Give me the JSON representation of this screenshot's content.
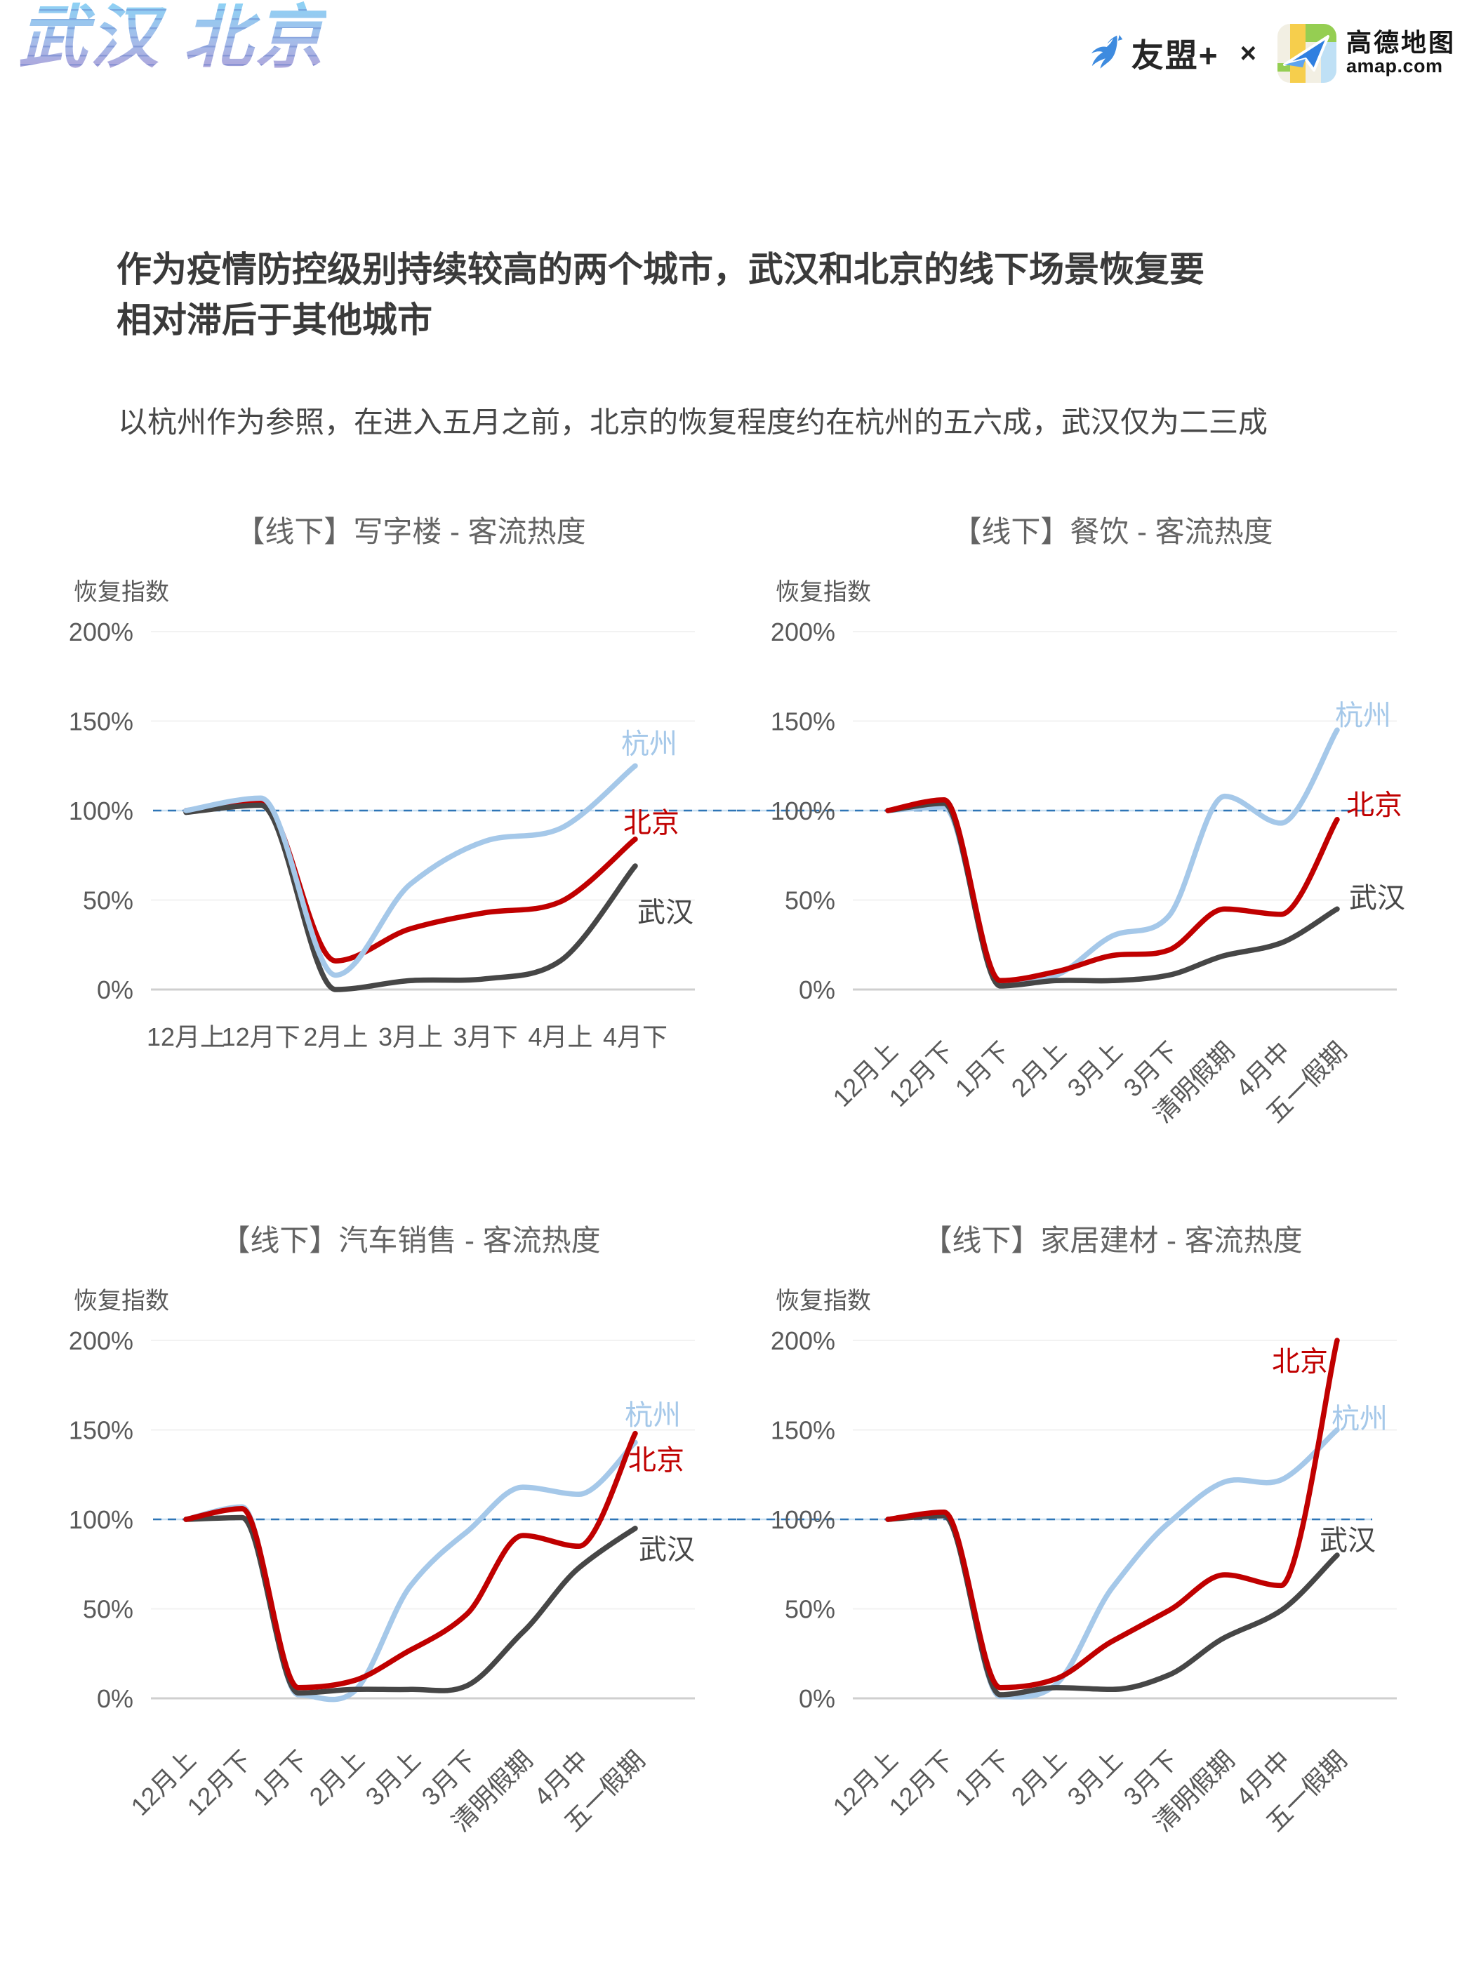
{
  "brand": {
    "title": "武汉 北京"
  },
  "header_logos": {
    "umeng_label": "友盟+",
    "separator": "×",
    "amap_title": "高德地图",
    "amap_subtitle": "amap.com"
  },
  "headline": "作为疫情防控级别持续较高的两个城市，武汉和北京的线下场景恢复要\n相对滞后于其他城市",
  "subheadline": "以杭州作为参照，在进入五月之前，北京的恢复程度约在杭州的五六成，武汉仅为二三成",
  "colors": {
    "hangzhou": "#A5C8E9",
    "beijing": "#C00000",
    "wuhan": "#464646",
    "reference_dash": "#2E75B6",
    "reference_under": "#C9E0F2",
    "axis_text": "#595959",
    "title_text": "#646464",
    "grid_faint": "#F2F2F2",
    "axis_line": "#CFCFCF"
  },
  "axis": {
    "y_label": "恢复指数",
    "y_ticks_pct": [
      200,
      150,
      100,
      50,
      0
    ],
    "reference_pct": 100
  },
  "chart_data": [
    {
      "type": "line",
      "title": "【线下】写字楼 - 客流热度",
      "position": "top-left",
      "ylabel": "恢复指数",
      "ylim": [
        0,
        200
      ],
      "x_labels_rotated": false,
      "categories": [
        "12月上",
        "12月下",
        "2月上",
        "3月上",
        "3月下",
        "4月上",
        "4月下"
      ],
      "series": [
        {
          "name": "北京",
          "color_key": "beijing",
          "values": [
            100,
            105,
            16,
            34,
            43,
            49,
            84
          ],
          "label_x": 838,
          "label_pct": 93
        },
        {
          "name": "武汉",
          "color_key": "wuhan",
          "values": [
            99,
            103,
            0,
            5,
            6,
            16,
            69
          ],
          "label_x": 858,
          "label_pct": 43
        },
        {
          "name": "杭州",
          "color_key": "hangzhou",
          "values": [
            100,
            107,
            8,
            59,
            83,
            90,
            125
          ],
          "label_x": 835,
          "label_pct": 137
        }
      ]
    },
    {
      "type": "line",
      "title": "【线下】餐饮 - 客流热度",
      "position": "top-right",
      "ylabel": "恢复指数",
      "ylim": [
        0,
        200
      ],
      "x_labels_rotated": true,
      "categories": [
        "12月上",
        "12月下",
        "1月下",
        "2月上",
        "3月上",
        "3月下",
        "清明假期",
        "4月中",
        "五一假期"
      ],
      "series": [
        {
          "name": "杭州",
          "color_key": "hangzhou",
          "values": [
            100,
            102,
            4,
            8,
            30,
            41,
            108,
            93,
            145
          ],
          "label_x": 852,
          "label_pct": 153
        },
        {
          "name": "武汉",
          "color_key": "wuhan",
          "values": [
            100,
            104,
            2,
            5,
            5,
            8,
            19,
            26,
            45
          ],
          "label_x": 872,
          "label_pct": 51
        },
        {
          "name": "北京",
          "color_key": "beijing",
          "values": [
            100,
            106,
            5,
            10,
            19,
            22,
            45,
            42,
            95
          ],
          "label_x": 868,
          "label_pct": 103
        }
      ]
    },
    {
      "type": "line",
      "title": "【线下】汽车销售 - 客流热度",
      "position": "bottom-left",
      "ylabel": "恢复指数",
      "ylim": [
        0,
        200
      ],
      "x_labels_rotated": true,
      "categories": [
        "12月上",
        "12月下",
        "1月下",
        "2月上",
        "3月上",
        "3月下",
        "清明假期",
        "4月中",
        "五一假期"
      ],
      "series": [
        {
          "name": "杭州",
          "color_key": "hangzhou",
          "values": [
            100,
            107,
            2,
            4,
            63,
            93,
            118,
            114,
            143
          ],
          "label_x": 840,
          "label_pct": 158
        },
        {
          "name": "武汉",
          "color_key": "wuhan",
          "values": [
            100,
            101,
            3,
            5,
            5,
            7,
            37,
            73,
            95
          ],
          "label_x": 860,
          "label_pct": 83
        },
        {
          "name": "北京",
          "color_key": "beijing",
          "values": [
            100,
            106,
            6,
            10,
            27,
            47,
            91,
            85,
            148
          ],
          "label_x": 845,
          "label_pct": 133
        }
      ]
    },
    {
      "type": "line",
      "title": "【线下】家居建材 - 客流热度",
      "position": "bottom-right",
      "ylabel": "恢复指数",
      "ylim": [
        0,
        200
      ],
      "x_labels_rotated": true,
      "categories": [
        "12月上",
        "12月下",
        "1月下",
        "2月上",
        "3月上",
        "3月下",
        "清明假期",
        "4月中",
        "五一假期"
      ],
      "series": [
        {
          "name": "杭州",
          "color_key": "hangzhou",
          "values": [
            100,
            103,
            1,
            8,
            62,
            98,
            121,
            122,
            150
          ],
          "label_x": 847,
          "label_pct": 156
        },
        {
          "name": "武汉",
          "color_key": "wuhan",
          "values": [
            100,
            102,
            2,
            6,
            5,
            13,
            34,
            49,
            80
          ],
          "label_x": 830,
          "label_pct": 88
        },
        {
          "name": "北京",
          "color_key": "beijing",
          "values": [
            100,
            104,
            6,
            11,
            32,
            49,
            69,
            63,
            200
          ],
          "label_x": 762,
          "label_pct": 188
        }
      ]
    }
  ]
}
